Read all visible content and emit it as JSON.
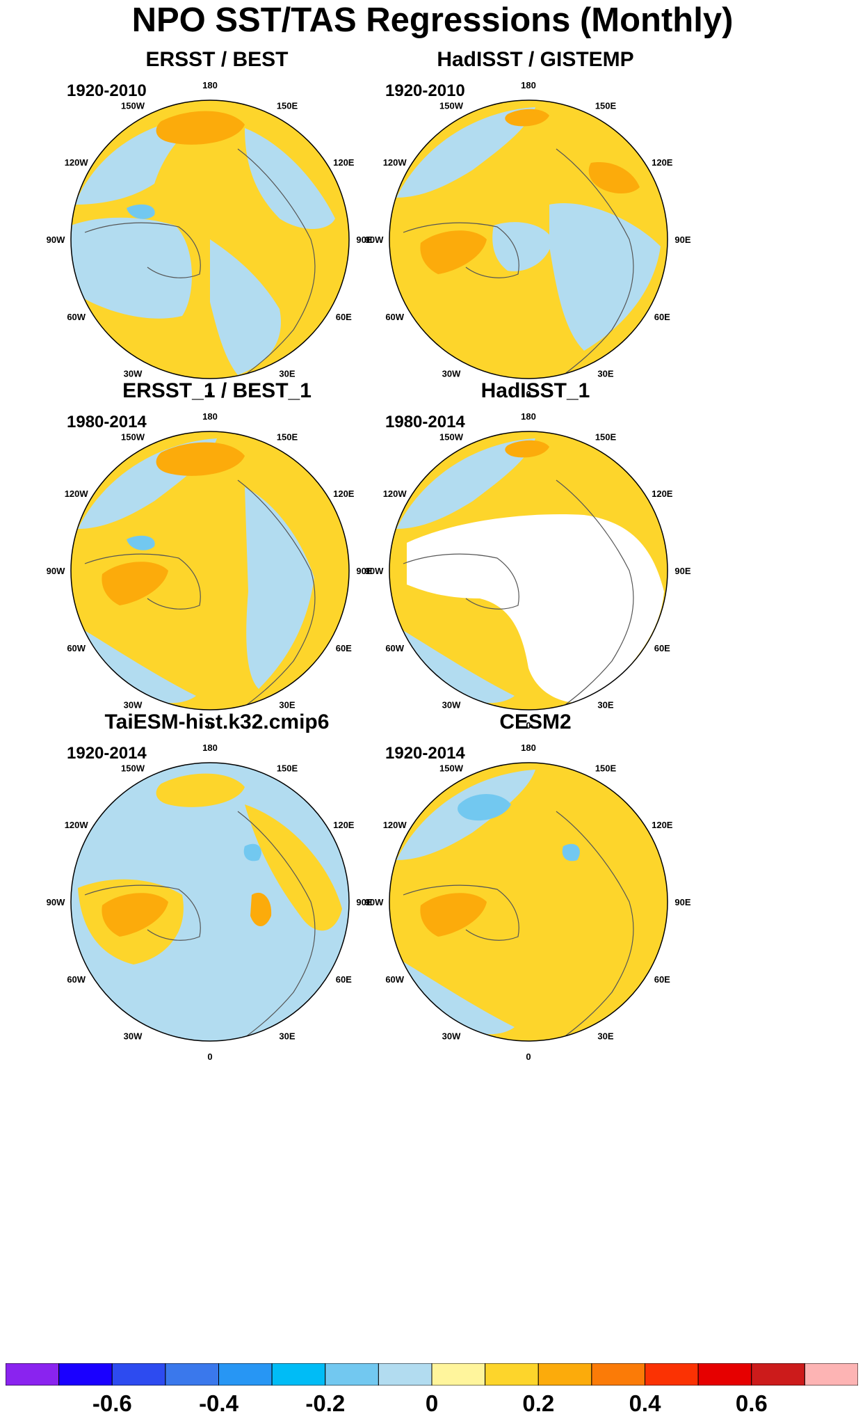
{
  "title": "NPO SST/TAS Regressions (Monthly)",
  "longitude_labels": [
    "180",
    "150E",
    "120E",
    "90E",
    "60E",
    "30E",
    "0",
    "30W",
    "60W",
    "90W",
    "120W",
    "150W"
  ],
  "colors": {
    "background": "#ffffff",
    "land_outline": "#555555",
    "missing": "#ffffff"
  },
  "panels": [
    {
      "title": "ERSST / BEST",
      "period": "1920-2010",
      "features": [
        {
          "value": 0.1,
          "shape": "background"
        },
        {
          "value": -0.1,
          "shape": "west_pacific_band"
        },
        {
          "value": -0.1,
          "shape": "canada_arctic"
        },
        {
          "value": -0.1,
          "shape": "siberia_band"
        },
        {
          "value": -0.1,
          "shape": "north_atlantic"
        },
        {
          "value": 0.2,
          "shape": "pacific_center"
        },
        {
          "value": -0.2,
          "shape": "small_patch_w"
        }
      ]
    },
    {
      "title": "HadISST / GISTEMP",
      "period": "1920-2010",
      "features": [
        {
          "value": 0.1,
          "shape": "background"
        },
        {
          "value": -0.1,
          "shape": "pacific_arc"
        },
        {
          "value": -0.1,
          "shape": "eurasia_cold"
        },
        {
          "value": -0.1,
          "shape": "arctic_ocean"
        },
        {
          "value": 0.2,
          "shape": "canada_warm"
        },
        {
          "value": 0.2,
          "shape": "pacific_center_small"
        },
        {
          "value": 0.2,
          "shape": "east_siberia"
        }
      ]
    },
    {
      "title": "ERSST_1 / BEST_1",
      "period": "1980-2014",
      "features": [
        {
          "value": 0.1,
          "shape": "background"
        },
        {
          "value": -0.1,
          "shape": "pacific_arc"
        },
        {
          "value": -0.1,
          "shape": "eurasia_band"
        },
        {
          "value": -0.1,
          "shape": "south_atlantic"
        },
        {
          "value": 0.2,
          "shape": "pacific_center"
        },
        {
          "value": 0.2,
          "shape": "canada_warm"
        },
        {
          "value": -0.2,
          "shape": "small_patch_w"
        }
      ]
    },
    {
      "title": "HadISST_1",
      "period": "1980-2014",
      "features": [
        {
          "value": 0.1,
          "shape": "background"
        },
        {
          "value": -0.1,
          "shape": "pacific_arc"
        },
        {
          "value": -0.1,
          "shape": "south_atlantic"
        },
        {
          "value": null,
          "shape": "land_mask"
        },
        {
          "value": 0.2,
          "shape": "pacific_center_small"
        }
      ]
    },
    {
      "title": "TaiESM-hist.k32.cmip6",
      "period": "1920-2014",
      "features": [
        {
          "value": -0.1,
          "shape": "background"
        },
        {
          "value": 0.1,
          "shape": "pacific_center"
        },
        {
          "value": 0.1,
          "shape": "canada_yellow"
        },
        {
          "value": 0.1,
          "shape": "eurasia_yellow"
        },
        {
          "value": 0.2,
          "shape": "canada_warm"
        },
        {
          "value": 0.2,
          "shape": "siberia_warm"
        },
        {
          "value": -0.2,
          "shape": "small_patch_e"
        }
      ]
    },
    {
      "title": "CESM2",
      "period": "1920-2014",
      "features": [
        {
          "value": 0.1,
          "shape": "background"
        },
        {
          "value": -0.1,
          "shape": "pacific_arc"
        },
        {
          "value": -0.1,
          "shape": "south_atlantic"
        },
        {
          "value": -0.2,
          "shape": "pacific_cold"
        },
        {
          "value": 0.2,
          "shape": "canada_warm"
        },
        {
          "value": -0.2,
          "shape": "small_patch_e"
        }
      ]
    }
  ],
  "colorbar": {
    "colors": [
      "#8a23ef",
      "#1a00ff",
      "#2d4bf0",
      "#3a78ec",
      "#2796f4",
      "#00bcf6",
      "#72c8f0",
      "#b2dcf0",
      "#fff59c",
      "#fdd52b",
      "#fcab0b",
      "#fb7b07",
      "#fb3203",
      "#e60000",
      "#cc1b1b",
      "#fdb4b4"
    ],
    "tick_labels": [
      "-0.6",
      "-0.4",
      "-0.2",
      "0",
      "0.2",
      "0.4",
      "0.6"
    ]
  }
}
